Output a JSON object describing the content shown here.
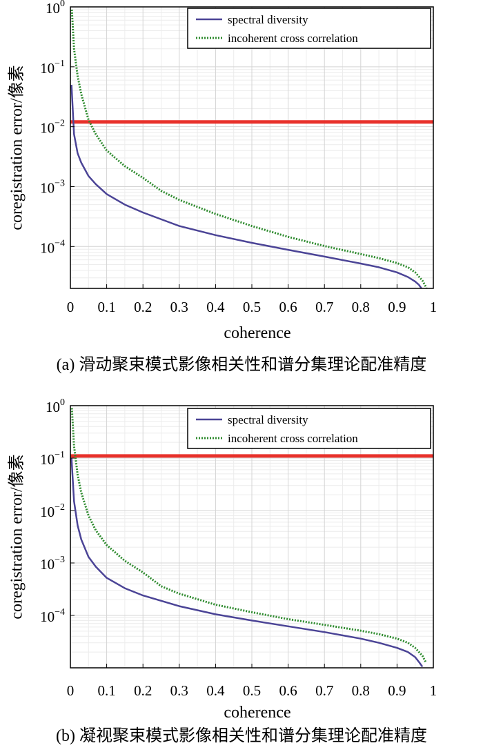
{
  "chart_data": [
    {
      "id": "a",
      "type": "line",
      "title": "",
      "caption": "(a) 滑动聚束模式影像相关性和谱分集理论配准精度",
      "xlabel": "coherence",
      "ylabel": "coregistration error/像素",
      "xlim": [
        0,
        1
      ],
      "ylim": [
        2e-05,
        1
      ],
      "yscale": "log",
      "grid": true,
      "legend_position": "top-right",
      "xticks": [
        "0",
        "0.1",
        "0.2",
        "0.3",
        "0.4",
        "0.5",
        "0.6",
        "0.7",
        "0.8",
        "0.9",
        "1"
      ],
      "xtick_values": [
        0,
        0.1,
        0.2,
        0.3,
        0.4,
        0.5,
        0.6,
        0.7,
        0.8,
        0.9,
        1
      ],
      "yticks": [
        {
          "base": "10",
          "exp": "0",
          "value": 1
        },
        {
          "base": "10",
          "exp": "−1",
          "value": 0.1
        },
        {
          "base": "10",
          "exp": "−2",
          "value": 0.01
        },
        {
          "base": "10",
          "exp": "−3",
          "value": 0.001
        },
        {
          "base": "10",
          "exp": "−4",
          "value": 0.0001
        }
      ],
      "threshold": {
        "value": 0.012,
        "color": "#e8302a"
      },
      "series": [
        {
          "name": "spectral diversity",
          "color": "#4b4496",
          "style": "solid",
          "x": [
            0.003,
            0.01,
            0.02,
            0.03,
            0.05,
            0.07,
            0.1,
            0.15,
            0.2,
            0.3,
            0.4,
            0.5,
            0.6,
            0.7,
            0.8,
            0.85,
            0.9,
            0.93,
            0.95,
            0.96,
            0.97,
            0.98
          ],
          "y": [
            0.05,
            0.0075,
            0.0036,
            0.0025,
            0.0015,
            0.0011,
            0.00075,
            0.0005,
            0.00037,
            0.00022,
            0.000155,
            0.000115,
            8.8e-05,
            6.8e-05,
            5.2e-05,
            4.5e-05,
            3.7e-05,
            3.1e-05,
            2.6e-05,
            2.3e-05,
            1.9e-05,
            1.5e-05
          ]
        },
        {
          "name": "incoherent cross correlation",
          "color": "#2e8b2e",
          "style": "dotted",
          "x": [
            0.004,
            0.01,
            0.02,
            0.03,
            0.05,
            0.07,
            0.1,
            0.15,
            0.2,
            0.25,
            0.3,
            0.4,
            0.5,
            0.6,
            0.7,
            0.8,
            0.85,
            0.9,
            0.93,
            0.95,
            0.97,
            0.98,
            0.985
          ],
          "y": [
            0.9,
            0.2,
            0.07,
            0.035,
            0.013,
            0.0075,
            0.004,
            0.0022,
            0.0014,
            0.00085,
            0.0006,
            0.00035,
            0.00022,
            0.000145,
            0.000102,
            7.5e-05,
            6.4e-05,
            5.3e-05,
            4.5e-05,
            3.7e-05,
            2.7e-05,
            2.1e-05,
            1.6e-05
          ]
        }
      ]
    },
    {
      "id": "b",
      "type": "line",
      "title": "",
      "caption": "(b) 凝视聚束模式影像相关性和谱分集理论配准精度",
      "xlabel": "coherence",
      "ylabel": "coregistration error/像素",
      "xlim": [
        0,
        1
      ],
      "ylim": [
        1e-05,
        1
      ],
      "yscale": "log",
      "grid": true,
      "legend_position": "top-right",
      "xticks": [
        "0",
        "0.1",
        "0.2",
        "0.3",
        "0.4",
        "0.5",
        "0.6",
        "0.7",
        "0.8",
        "0.9",
        "1"
      ],
      "xtick_values": [
        0,
        0.1,
        0.2,
        0.3,
        0.4,
        0.5,
        0.6,
        0.7,
        0.8,
        0.9,
        1
      ],
      "yticks": [
        {
          "base": "10",
          "exp": "0",
          "value": 1
        },
        {
          "base": "10",
          "exp": "−1",
          "value": 0.1
        },
        {
          "base": "10",
          "exp": "−2",
          "value": 0.01
        },
        {
          "base": "10",
          "exp": "−3",
          "value": 0.001
        },
        {
          "base": "10",
          "exp": "−4",
          "value": 0.0001
        }
      ],
      "threshold": {
        "value": 0.11,
        "color": "#e8302a"
      },
      "series": [
        {
          "name": "spectral diversity",
          "color": "#4b4496",
          "style": "solid",
          "x": [
            0.003,
            0.01,
            0.02,
            0.03,
            0.05,
            0.07,
            0.1,
            0.15,
            0.2,
            0.3,
            0.4,
            0.5,
            0.6,
            0.7,
            0.8,
            0.85,
            0.9,
            0.93,
            0.95,
            0.96,
            0.97
          ],
          "y": [
            0.1,
            0.015,
            0.0052,
            0.0028,
            0.0013,
            0.00085,
            0.00052,
            0.00033,
            0.00024,
            0.00015,
            0.000105,
            8e-05,
            6.2e-05,
            4.8e-05,
            3.6e-05,
            3e-05,
            2.4e-05,
            2e-05,
            1.6e-05,
            1.3e-05,
            1.05e-05
          ]
        },
        {
          "name": "incoherent cross correlation",
          "color": "#2e8b2e",
          "style": "dotted",
          "x": [
            0.004,
            0.01,
            0.02,
            0.03,
            0.05,
            0.07,
            0.1,
            0.15,
            0.2,
            0.25,
            0.3,
            0.4,
            0.5,
            0.6,
            0.7,
            0.8,
            0.85,
            0.9,
            0.93,
            0.95,
            0.97,
            0.98
          ],
          "y": [
            0.9,
            0.17,
            0.048,
            0.022,
            0.008,
            0.0042,
            0.0022,
            0.0011,
            0.00066,
            0.00036,
            0.00026,
            0.00016,
            0.000115,
            8.5e-05,
            6.6e-05,
            5.1e-05,
            4.4e-05,
            3.6e-05,
            3e-05,
            2.4e-05,
            1.7e-05,
            1.25e-05
          ]
        }
      ]
    }
  ]
}
